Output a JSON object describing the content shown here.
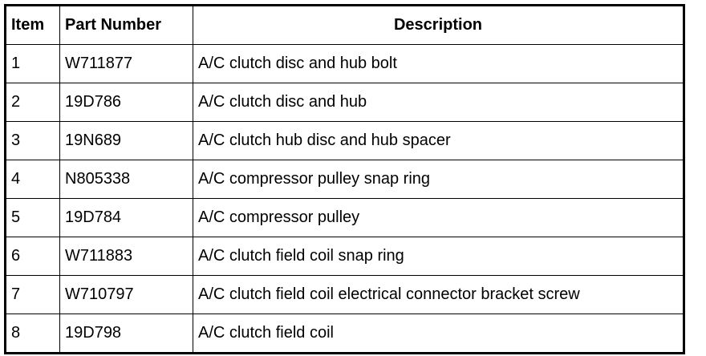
{
  "headers": {
    "item": "Item",
    "part_number": "Part Number",
    "description": "Description"
  },
  "rows": [
    {
      "item": "1",
      "part_number": "W711877",
      "description": "A/C clutch disc and hub bolt"
    },
    {
      "item": "2",
      "part_number": "19D786",
      "description": "A/C clutch disc and hub"
    },
    {
      "item": "3",
      "part_number": "19N689",
      "description": "A/C clutch hub disc and hub spacer"
    },
    {
      "item": "4",
      "part_number": "N805338",
      "description": "A/C compressor pulley snap ring"
    },
    {
      "item": "5",
      "part_number": "19D784",
      "description": "A/C compressor pulley"
    },
    {
      "item": "6",
      "part_number": "W711883",
      "description": "A/C clutch field coil snap ring"
    },
    {
      "item": "7",
      "part_number": "W710797",
      "description": "A/C clutch field coil electrical connector bracket screw"
    },
    {
      "item": "8",
      "part_number": "19D798",
      "description": "A/C clutch field coil"
    }
  ]
}
